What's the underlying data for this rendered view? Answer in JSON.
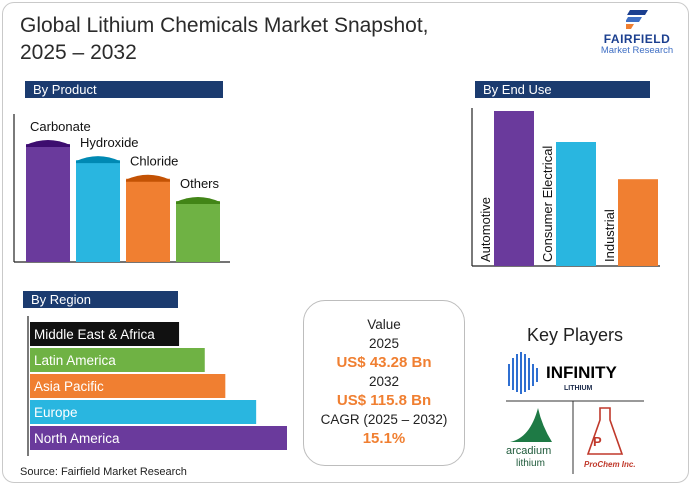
{
  "title_line1": "Global Lithium Chemicals Market Snapshot,",
  "title_line2": "2025 – 2032",
  "logo": {
    "brand": "FAIRFIELD",
    "sub": "Market Research"
  },
  "sections": {
    "product": "By Product",
    "end_use": "By End Use",
    "region": "By Region"
  },
  "market": {
    "value_label": "Value",
    "year1": "2025",
    "value1": "US$ 43.28 Bn",
    "year2": "2032",
    "value2": "US$ 115.8 Bn",
    "cagr_label": "CAGR (2025 – 2032)",
    "cagr": "15.1%"
  },
  "key_players": {
    "title": "Key Players",
    "logos": [
      {
        "name": "INFINITY",
        "sub": "LITHIUM",
        "color": "#1b2a4a"
      },
      {
        "name": "arcadium",
        "sub": "lithium",
        "color": "#1e7a45"
      },
      {
        "name": "ProChem Inc.",
        "color": "#c0392b"
      }
    ]
  },
  "source": "Source: Fairfield Market Research",
  "chart_data": [
    {
      "type": "bar",
      "title": "By Product",
      "categories": [
        "Carbonate",
        "Hydroxide",
        "Chloride",
        "Others"
      ],
      "values": [
        100,
        87,
        72,
        54
      ],
      "colors": [
        "#6a3a9c",
        "#29b6e0",
        "#f07f31",
        "#6fb244"
      ]
    },
    {
      "type": "bar",
      "title": "By End Use",
      "categories": [
        "Automotive",
        "Consumer Electrical",
        "Industrial"
      ],
      "values": [
        100,
        80,
        56
      ],
      "colors": [
        "#6a3a9c",
        "#29b6e0",
        "#f07f31"
      ]
    },
    {
      "type": "bar",
      "orientation": "horizontal",
      "title": "By Region",
      "categories": [
        "Middle East & Africa",
        "Latin America",
        "Asia Pacific",
        "Europe",
        "North America"
      ],
      "values": [
        58,
        68,
        76,
        88,
        100
      ],
      "colors": [
        "#111111",
        "#6fb244",
        "#f07f31",
        "#29b6e0",
        "#6a3a9c"
      ]
    }
  ]
}
